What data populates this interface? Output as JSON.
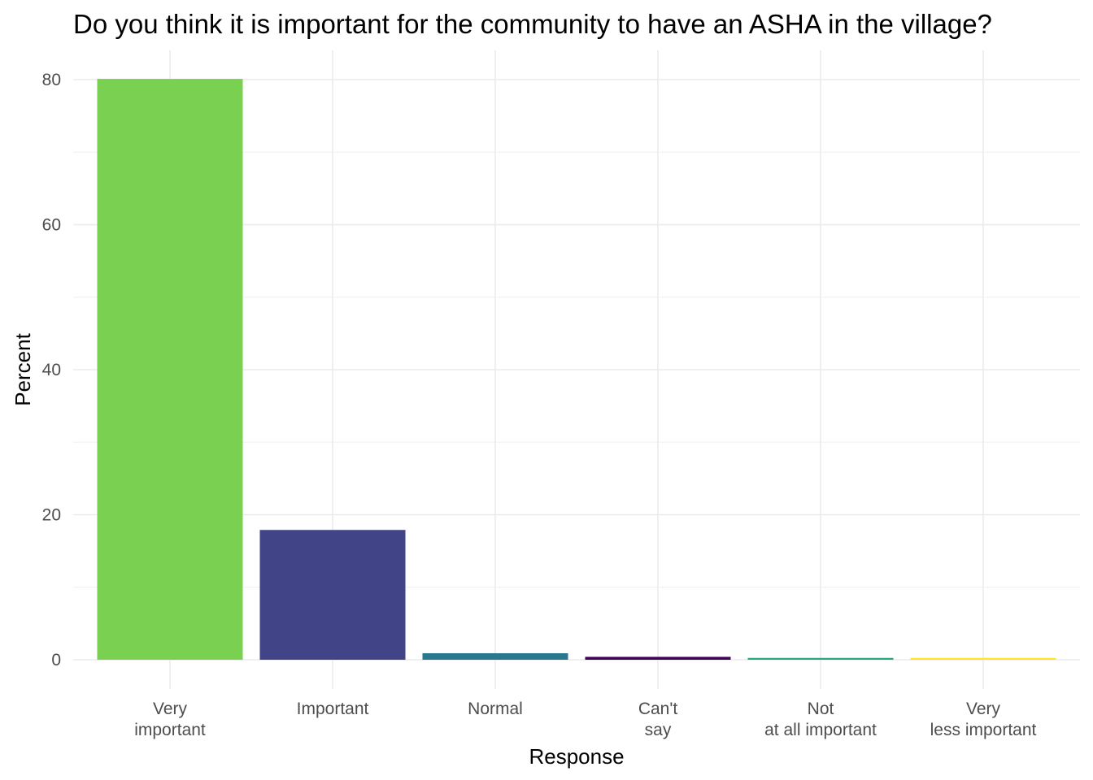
{
  "chart_data": {
    "type": "bar",
    "title": "Do you think it is important for the community to have an ASHA in the village?",
    "xlabel": "Response",
    "ylabel": "Percent",
    "categories": [
      [
        "Very",
        "important"
      ],
      [
        "Important"
      ],
      [
        "Normal"
      ],
      [
        "Can't",
        "say"
      ],
      [
        "Not",
        "at all important"
      ],
      [
        "Very",
        "less important"
      ]
    ],
    "values": [
      80.1,
      17.9,
      0.9,
      0.4,
      0.25,
      0.25
    ],
    "colors": [
      "#7AD151",
      "#414487",
      "#2A788E",
      "#440154",
      "#22A884",
      "#FDE725"
    ],
    "ylim": [
      0,
      80
    ],
    "yticks": [
      0,
      20,
      40,
      60,
      80
    ],
    "grid": true,
    "legend": "none"
  }
}
